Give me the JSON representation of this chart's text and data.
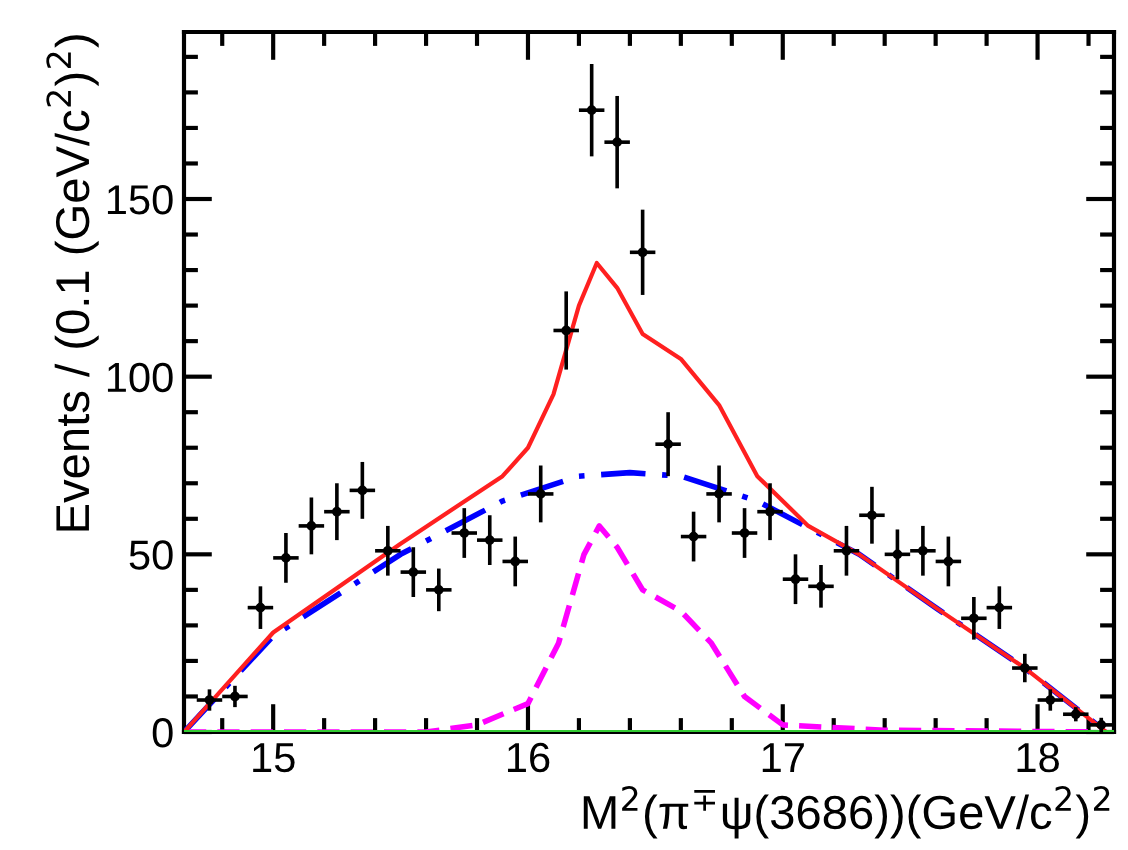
{
  "chart_data": {
    "type": "scatter",
    "xlabel": "M$^{2}$(π$^{∓}$ψ(3686))(GeV/c$^{2}$)$^{2}$",
    "ylabel": "Events / (0.1 (GeV/c$^{2}$)$^{2}$)",
    "xlim": [
      14.65,
      18.3
    ],
    "xticks": [
      15,
      16,
      17,
      18
    ],
    "ylim": [
      0,
      197
    ],
    "yticks": [
      0,
      50,
      100,
      150
    ],
    "grid": false,
    "series": [
      {
        "color": "#000000",
        "marker": "circle",
        "x": [
          14.75,
          14.85,
          14.95,
          15.05,
          15.15,
          15.25,
          15.35,
          15.45,
          15.55,
          15.65,
          15.75,
          15.85,
          15.95,
          16.05,
          16.15,
          16.25,
          16.35,
          16.45,
          16.55,
          16.65,
          16.75,
          16.85,
          16.95,
          17.05,
          17.15,
          17.25,
          17.35,
          17.45,
          17.55,
          17.65,
          17.75,
          17.85,
          17.95,
          18.05,
          18.15,
          18.25
        ],
        "values": [
          9,
          10,
          35,
          49,
          58,
          62,
          68,
          51,
          45,
          40,
          56,
          54,
          48,
          67,
          113,
          175,
          166,
          135,
          81,
          55,
          67,
          56,
          62,
          43,
          41,
          51,
          61,
          50,
          51,
          48,
          32,
          35,
          18,
          9,
          5,
          2
        ],
        "errors": [
          3,
          3,
          6,
          7,
          8,
          8,
          8,
          7,
          7,
          6,
          7,
          7,
          7,
          8,
          11,
          13,
          13,
          12,
          9,
          7,
          8,
          7,
          8,
          7,
          6,
          7,
          8,
          7,
          7,
          7,
          6,
          6,
          4,
          3,
          2,
          2
        ],
        "xerrors": [
          0.05,
          0.05,
          0.05,
          0.05,
          0.05,
          0.05,
          0.05,
          0.05,
          0.05,
          0.05,
          0.05,
          0.05,
          0.05,
          0.05,
          0.05,
          0.05,
          0.05,
          0.05,
          0.05,
          0.05,
          0.05,
          0.05,
          0.05,
          0.05,
          0.05,
          0.05,
          0.05,
          0.05,
          0.05,
          0.05,
          0.05,
          0.05,
          0.05,
          0.05,
          0.05,
          0.05
        ]
      },
      {
        "type": "line",
        "color": "#0000ff",
        "line_style": "dashdot",
        "x": [
          14.65,
          15.0,
          15.5,
          15.9,
          16.2,
          16.4,
          16.6,
          16.9,
          17.3,
          17.6,
          17.95,
          18.27
        ],
        "values": [
          0,
          27,
          50,
          65,
          72,
          73,
          72,
          65,
          50,
          35,
          18,
          0
        ]
      },
      {
        "type": "line",
        "color": "#ff00ff",
        "line_style": "dashed",
        "x": [
          14.65,
          15.6,
          15.8,
          16.0,
          16.12,
          16.22,
          16.28,
          16.35,
          16.45,
          16.6,
          16.72,
          16.85,
          17.0,
          17.4,
          18.27
        ],
        "values": [
          0,
          0,
          2,
          8,
          25,
          50,
          58,
          52,
          40,
          34,
          25,
          10,
          2,
          0.5,
          0
        ]
      },
      {
        "type": "line",
        "color": "#ff2020",
        "line_style": "solid",
        "x": [
          14.65,
          15.0,
          15.5,
          15.9,
          16.0,
          16.1,
          16.2,
          16.27,
          16.35,
          16.45,
          16.6,
          16.75,
          16.9,
          17.1,
          17.3,
          17.6,
          17.95,
          18.27
        ],
        "values": [
          0,
          28,
          53,
          72,
          80,
          95,
          120,
          132,
          125,
          112,
          105,
          92,
          72,
          58,
          50,
          35,
          18,
          0
        ]
      },
      {
        "type": "line",
        "color": "#33cc33",
        "line_style": "solid",
        "x": [
          14.65,
          18.3
        ],
        "values": [
          0,
          0
        ]
      }
    ]
  }
}
